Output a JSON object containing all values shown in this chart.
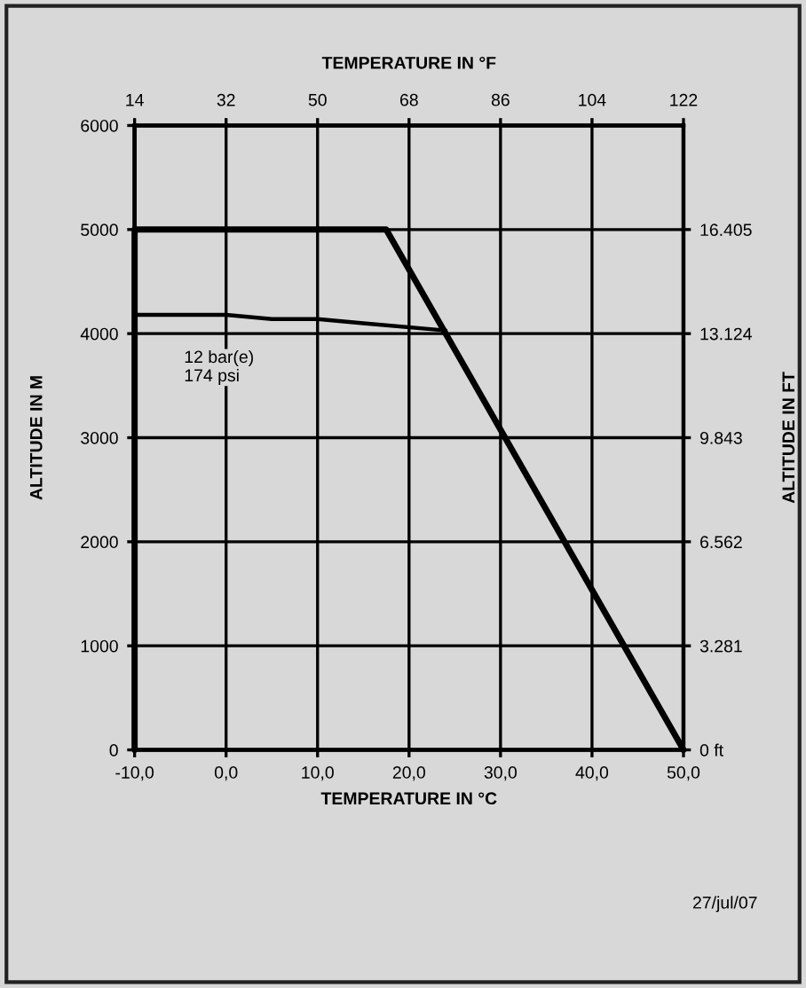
{
  "chart_data": {
    "type": "line",
    "x2label": "TEMPERATURE IN °F",
    "xlabel": "TEMPERATURE IN °C",
    "ylabel": "ALTITUDE IN M",
    "y2label": "ALTITUDE IN FT",
    "xlim": [
      -10,
      50
    ],
    "xticks": [
      {
        "value": -10,
        "label": "-10,0"
      },
      {
        "value": 0,
        "label": "0,0"
      },
      {
        "value": 10,
        "label": "10,0"
      },
      {
        "value": 20,
        "label": "20,0"
      },
      {
        "value": 30,
        "label": "30,0"
      },
      {
        "value": 40,
        "label": "40,0"
      },
      {
        "value": 50,
        "label": "50,0"
      }
    ],
    "x2lim": [
      14,
      122
    ],
    "x2ticks": [
      14,
      32,
      50,
      68,
      86,
      104,
      122
    ],
    "ylim": [
      0,
      6000
    ],
    "yticks": [
      0,
      1000,
      2000,
      3000,
      4000,
      5000,
      6000
    ],
    "y2lim": [
      0,
      19686
    ],
    "y2ticks": [
      {
        "value": 0,
        "label": "0 ft"
      },
      {
        "value": 3281,
        "label": "3.281"
      },
      {
        "value": 6562,
        "label": "6.562"
      },
      {
        "value": 9843,
        "label": "9.843"
      },
      {
        "value": 13124,
        "label": "13.124"
      },
      {
        "value": 16405,
        "label": "16.405"
      }
    ],
    "grid": true,
    "series": [
      {
        "color": "#000000",
        "x": [
          -10,
          -10,
          17.5,
          50
        ],
        "values": [
          0,
          5000,
          5000,
          0
        ]
      },
      {
        "color": "#000000",
        "x": [
          -10,
          0,
          5,
          10,
          15,
          24
        ],
        "values": [
          4180,
          4180,
          4140,
          4140,
          4100,
          4030
        ]
      }
    ],
    "annotations": [
      "12 bar(e)\n174 psi",
      "27/jul/07"
    ]
  }
}
